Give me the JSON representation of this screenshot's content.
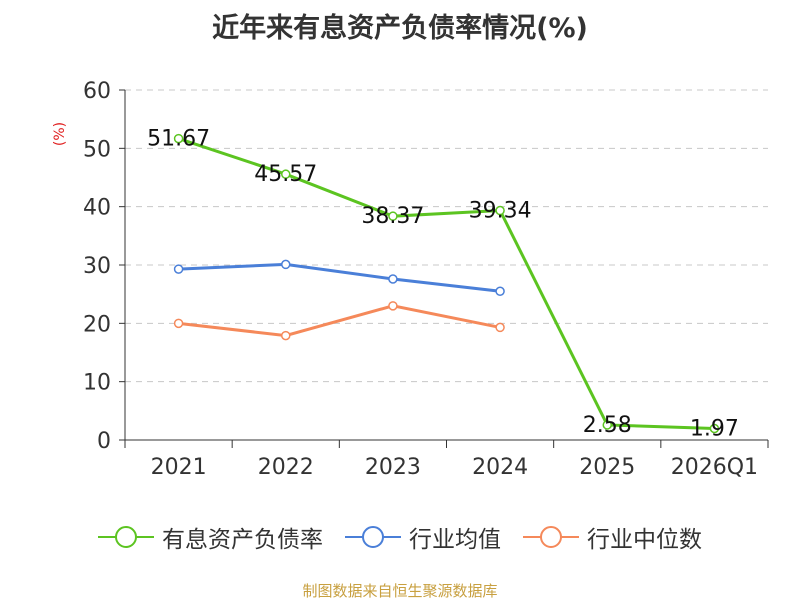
{
  "title": "近年来有息资产负债率情况(%)",
  "unit_label": "(%)",
  "source": "制图数据来自恒生聚源数据库",
  "chart_data": {
    "type": "line",
    "categories": [
      "2021",
      "2022",
      "2023",
      "2024",
      "2025",
      "2026Q1"
    ],
    "ylim": [
      0,
      60
    ],
    "yticks": [
      0,
      10,
      20,
      30,
      40,
      50,
      60
    ],
    "grid": true,
    "legend_position": "bottom",
    "series": [
      {
        "name": "有息资产负债率",
        "color": "#5cc421",
        "values": [
          51.67,
          45.57,
          38.37,
          39.34,
          2.58,
          1.97
        ],
        "labels": [
          "51.67",
          "45.57",
          "38.37",
          "39.34",
          "2.58",
          "1.97"
        ]
      },
      {
        "name": "行业均值",
        "color": "#4a7fd8",
        "values": [
          29.3,
          30.1,
          27.6,
          25.5,
          null,
          null
        ]
      },
      {
        "name": "行业中位数",
        "color": "#f5895a",
        "values": [
          20.0,
          17.9,
          23.0,
          19.3,
          null,
          null
        ]
      }
    ]
  }
}
